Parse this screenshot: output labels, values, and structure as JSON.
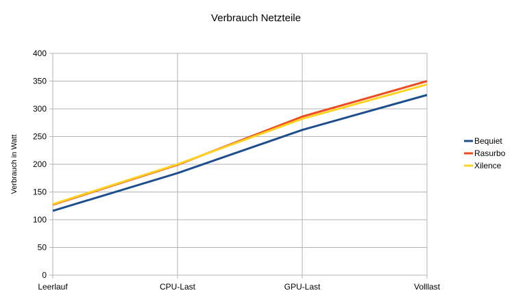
{
  "chart_data": {
    "type": "line",
    "title": "Verbrauch Netzteile",
    "xlabel": "",
    "ylabel": "Verbrauch in Watt",
    "categories": [
      "Leerlauf",
      "CPU-Last",
      "GPU-Last",
      "Volllast"
    ],
    "ylim": [
      0,
      400
    ],
    "yticks": [
      0,
      50,
      100,
      150,
      200,
      250,
      300,
      350,
      400
    ],
    "grid": true,
    "legend_position": "right",
    "series": [
      {
        "name": "Bequiet",
        "color": "#1f4e8c",
        "values": [
          116,
          184,
          262,
          325
        ]
      },
      {
        "name": "Rasurbo",
        "color": "#ee4a22",
        "values": [
          127,
          199,
          286,
          350
        ]
      },
      {
        "name": "Xilence",
        "color": "#ffd21f",
        "values": [
          128,
          200,
          282,
          344
        ]
      }
    ]
  }
}
